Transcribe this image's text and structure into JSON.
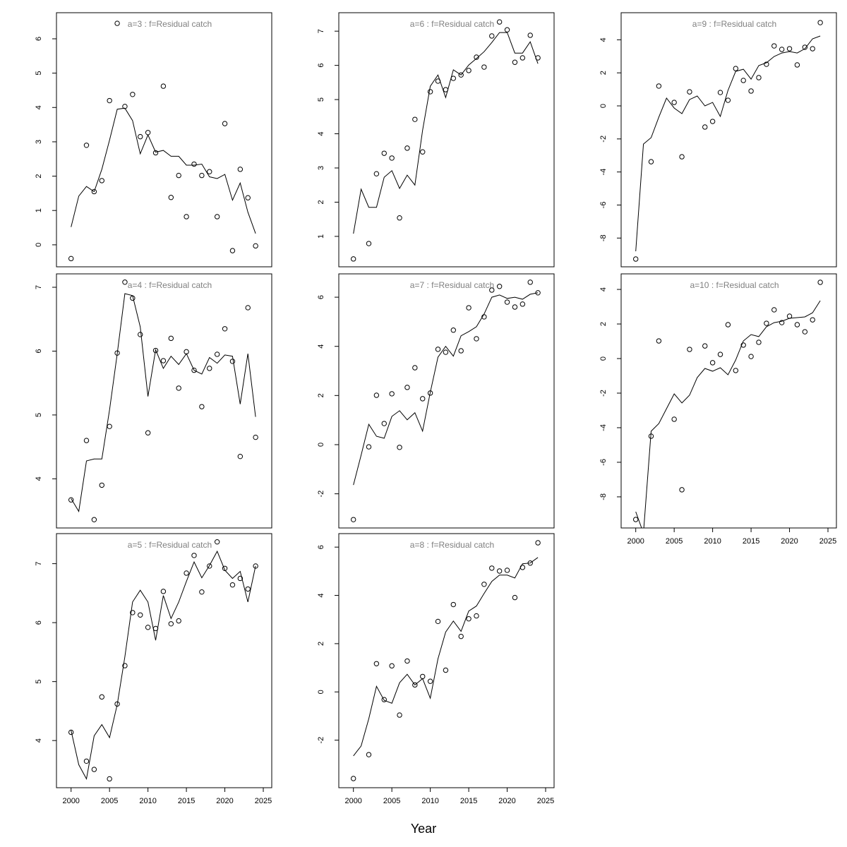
{
  "chart_data": {
    "type": "line",
    "xlabel": "Year",
    "x": [
      2000,
      2001,
      2002,
      2003,
      2004,
      2005,
      2006,
      2007,
      2008,
      2009,
      2010,
      2011,
      2012,
      2013,
      2014,
      2015,
      2016,
      2017,
      2018,
      2019,
      2020,
      2021,
      2022,
      2023,
      2024
    ],
    "xlim": [
      1998.1,
      2026.1
    ],
    "xticks": [
      2000,
      2005,
      2010,
      2015,
      2020,
      2025
    ],
    "grid": false,
    "panels": [
      {
        "title": "a=3  :  f=Residual catch",
        "ylim": [
          -0.64,
          6.76
        ],
        "yticks": [
          0,
          1,
          2,
          3,
          4,
          5,
          6
        ],
        "show_x_axis": false,
        "observed": [
          -0.4,
          null,
          2.9,
          1.55,
          1.87,
          4.2,
          6.45,
          4.03,
          4.38,
          3.15,
          3.27,
          2.68,
          4.62,
          1.38,
          2.02,
          0.82,
          2.35,
          2.02,
          2.13,
          0.82,
          3.53,
          -0.17,
          2.2,
          1.37,
          -0.03
        ],
        "fitted": [
          0.52,
          1.42,
          1.7,
          1.55,
          2.2,
          3.05,
          3.95,
          3.98,
          3.62,
          2.65,
          3.2,
          2.7,
          2.75,
          2.58,
          2.58,
          2.32,
          2.32,
          2.35,
          1.98,
          1.93,
          2.05,
          1.3,
          1.8,
          0.95,
          0.33
        ]
      },
      {
        "title": "a=4  :  f=Residual catch",
        "ylim": [
          3.23,
          7.21
        ],
        "yticks": [
          4,
          5,
          6,
          7
        ],
        "show_x_axis": false,
        "observed": [
          3.67,
          null,
          4.6,
          3.36,
          3.9,
          4.82,
          5.97,
          7.08,
          6.83,
          6.26,
          4.72,
          6.01,
          5.85,
          6.2,
          5.42,
          5.99,
          5.7,
          5.13,
          5.73,
          5.95,
          6.35,
          5.84,
          4.35,
          6.68,
          4.65
        ],
        "fitted": [
          3.69,
          3.49,
          4.28,
          4.31,
          4.31,
          5.08,
          5.96,
          6.9,
          6.87,
          6.38,
          5.29,
          6.02,
          5.73,
          5.92,
          5.79,
          5.96,
          5.7,
          5.64,
          5.9,
          5.81,
          5.94,
          5.92,
          5.17,
          5.96,
          4.97
        ]
      },
      {
        "title": "a=5  :  f=Residual catch",
        "ylim": [
          3.2,
          7.51
        ],
        "yticks": [
          4,
          5,
          6,
          7
        ],
        "show_x_axis": true,
        "observed": [
          4.14,
          null,
          3.65,
          3.51,
          4.74,
          3.35,
          4.62,
          5.27,
          6.17,
          6.13,
          5.92,
          5.9,
          6.53,
          5.98,
          6.03,
          6.84,
          7.14,
          6.52,
          6.96,
          7.37,
          6.92,
          6.64,
          6.75,
          6.57,
          6.96
        ],
        "fitted": [
          4.17,
          3.59,
          3.35,
          4.08,
          4.27,
          4.05,
          4.61,
          5.42,
          6.35,
          6.55,
          6.35,
          5.7,
          6.46,
          6.07,
          6.35,
          6.7,
          7.03,
          6.76,
          6.97,
          7.21,
          6.89,
          6.75,
          6.87,
          6.35,
          6.96
        ]
      },
      {
        "title": "a=6  :  f=Residual catch",
        "ylim": [
          0.11,
          7.54
        ],
        "yticks": [
          1,
          2,
          3,
          4,
          5,
          6,
          7
        ],
        "show_x_axis": false,
        "observed": [
          0.34,
          null,
          0.79,
          2.83,
          3.43,
          3.29,
          1.54,
          3.58,
          4.42,
          3.47,
          5.23,
          5.54,
          5.29,
          5.62,
          5.72,
          5.85,
          6.24,
          5.95,
          6.86,
          7.27,
          7.04,
          6.09,
          6.22,
          6.88,
          6.22
        ],
        "fitted": [
          1.08,
          2.38,
          1.85,
          1.85,
          2.73,
          2.92,
          2.4,
          2.79,
          2.5,
          4.1,
          5.39,
          5.72,
          5.06,
          5.87,
          5.72,
          6.01,
          6.2,
          6.4,
          6.67,
          6.96,
          6.96,
          6.36,
          6.36,
          6.69,
          6.05
        ]
      },
      {
        "title": "a=7  :  f=Residual catch",
        "ylim": [
          -3.39,
          6.95
        ],
        "yticks": [
          -2,
          0,
          2,
          4,
          6
        ],
        "show_x_axis": false,
        "observed": [
          -3.05,
          null,
          -0.09,
          2.01,
          0.86,
          2.07,
          -0.11,
          2.33,
          3.13,
          1.87,
          2.1,
          3.88,
          3.76,
          4.66,
          3.82,
          5.57,
          4.31,
          5.2,
          6.29,
          6.44,
          5.8,
          5.6,
          5.72,
          6.61,
          6.18
        ],
        "fitted": [
          -1.64,
          -0.43,
          0.83,
          0.34,
          0.26,
          1.15,
          1.38,
          1.01,
          1.3,
          0.55,
          2.13,
          3.56,
          4.0,
          3.6,
          4.43,
          4.6,
          4.8,
          5.32,
          6.0,
          6.09,
          5.95,
          6.0,
          5.92,
          6.12,
          6.18
        ]
      },
      {
        "title": "a=8  :  f=Residual catch",
        "ylim": [
          -3.97,
          6.56
        ],
        "yticks": [
          -2,
          0,
          2,
          4,
          6
        ],
        "show_x_axis": true,
        "observed": [
          -3.59,
          null,
          -2.6,
          1.17,
          -0.32,
          1.08,
          -0.96,
          1.28,
          0.29,
          0.64,
          0.44,
          2.92,
          0.9,
          3.62,
          2.3,
          3.03,
          3.15,
          4.46,
          5.13,
          5.01,
          5.04,
          3.91,
          5.16,
          5.34,
          6.18
        ],
        "fitted": [
          -2.65,
          -2.24,
          -1.11,
          0.23,
          -0.35,
          -0.47,
          0.38,
          0.73,
          0.29,
          0.55,
          -0.26,
          1.37,
          2.48,
          2.94,
          2.51,
          3.35,
          3.56,
          4.08,
          4.58,
          4.84,
          4.84,
          4.72,
          5.31,
          5.34,
          5.57
        ]
      },
      {
        "title": "a=9  :  f=Residual catch",
        "ylim": [
          -9.74,
          5.64
        ],
        "yticks": [
          -8,
          -6,
          -4,
          -2,
          0,
          2,
          4
        ],
        "show_x_axis": false,
        "observed": [
          -9.27,
          null,
          -3.38,
          1.2,
          null,
          0.21,
          -3.08,
          0.85,
          null,
          -1.28,
          -0.94,
          0.81,
          0.34,
          2.26,
          1.54,
          0.9,
          1.71,
          2.52,
          3.63,
          3.42,
          3.46,
          2.48,
          3.55,
          3.46,
          5.04
        ],
        "fitted": [
          -8.8,
          -2.31,
          -1.92,
          -0.68,
          0.47,
          -0.13,
          -0.47,
          0.38,
          0.6,
          0,
          0.21,
          -0.64,
          0.94,
          2.09,
          2.22,
          1.62,
          2.44,
          2.61,
          2.99,
          3.2,
          3.29,
          3.2,
          3.46,
          4.06,
          4.23
        ]
      },
      {
        "title": "a=10  :  f=Residual catch",
        "ylim": [
          -9.8,
          4.9
        ],
        "yticks": [
          -8,
          -6,
          -4,
          -2,
          0,
          2,
          4
        ],
        "show_x_axis": true,
        "observed": [
          -9.31,
          null,
          -4.49,
          1.02,
          null,
          -3.51,
          -7.59,
          0.53,
          null,
          0.73,
          -0.24,
          0.24,
          1.96,
          -0.69,
          0.78,
          0.12,
          0.94,
          2.04,
          2.82,
          2.08,
          2.45,
          1.96,
          1.55,
          2.24,
          4.41
        ],
        "fitted": [
          -8.86,
          -10.1,
          -4.2,
          -3.76,
          -2.9,
          -2.04,
          -2.57,
          -2.12,
          -1.1,
          -0.57,
          -0.73,
          -0.53,
          -0.94,
          -0.08,
          1.02,
          1.39,
          1.27,
          1.84,
          2.08,
          2.16,
          2.33,
          2.37,
          2.41,
          2.65,
          3.35
        ]
      }
    ]
  }
}
